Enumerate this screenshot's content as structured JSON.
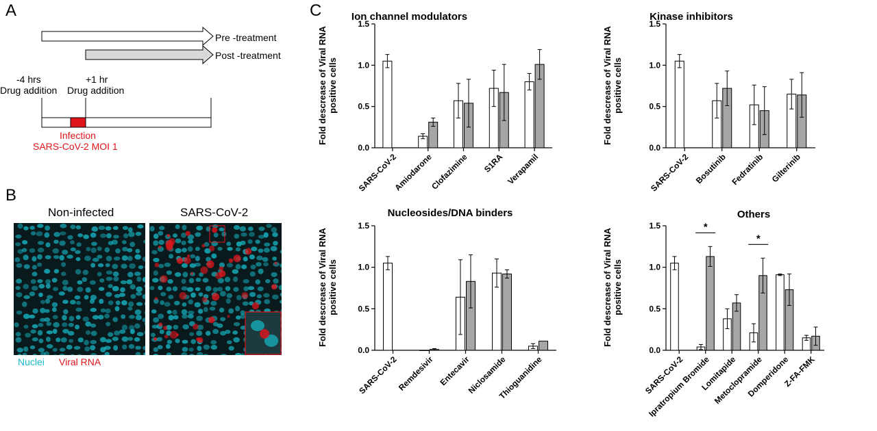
{
  "panels": {
    "a": "A",
    "b": "B",
    "c": "C"
  },
  "timeline": {
    "pretreat_label": "Pre -treatment",
    "posttreat_label": "Post -treatment",
    "minus4_line1": "-4 hrs",
    "minus4_line2": "Drug addition",
    "plus1_line1": "+1 hr",
    "plus1_line2": "Drug addition",
    "infection_line1": "Infection",
    "infection_line2": "SARS-CoV-2 MOI 1",
    "colors": {
      "infection": "#e0141b",
      "post_arrow": "#d9d9d9"
    }
  },
  "micrographs": {
    "left_title": "Non-infected",
    "right_title": "SARS-CoV-2",
    "legend_nuclei": "Nuclei",
    "legend_viral": "Viral RNA",
    "colors": {
      "nuclei": "#17b8c8",
      "viral": "#e0141b"
    }
  },
  "bar_colors": {
    "pre": "#ffffff",
    "post": "#a6a6a6"
  },
  "chart_data": [
    {
      "type": "bar",
      "title": "Ion channel modulators",
      "ylabel": "Fold descrease of Viral RNA positive cells",
      "ylim": [
        0,
        1.5
      ],
      "yticks": [
        "0.0",
        "0.5",
        "1.0",
        "1.5"
      ],
      "categories": [
        "SARS-CoV-2",
        "Amiodarone",
        "Clofazimine",
        "S1RA",
        "Verapamil"
      ],
      "series": [
        {
          "values": [
            1.05,
            0.14,
            0.57,
            0.72,
            0.8
          ],
          "errors": [
            0.08,
            0.03,
            0.21,
            0.22,
            0.1
          ]
        },
        {
          "values": [
            null,
            0.31,
            0.54,
            0.67,
            1.01
          ],
          "errors": [
            null,
            0.05,
            0.29,
            0.34,
            0.18
          ]
        }
      ]
    },
    {
      "type": "bar",
      "title": "Kinase inhibitors",
      "ylabel": "Fold descrease of Viral RNA positive cells",
      "ylim": [
        0,
        1.5
      ],
      "yticks": [
        "0.0",
        "0.5",
        "1.0",
        "1.5"
      ],
      "categories": [
        "SARS-CoV-2",
        "Bosutinib",
        "Fedratinib",
        "Gilterinib"
      ],
      "series": [
        {
          "values": [
            1.05,
            0.57,
            0.52,
            0.65
          ],
          "errors": [
            0.08,
            0.21,
            0.24,
            0.18
          ]
        },
        {
          "values": [
            null,
            0.72,
            0.45,
            0.64
          ],
          "errors": [
            null,
            0.21,
            0.29,
            0.27
          ]
        }
      ]
    },
    {
      "type": "bar",
      "title": "Nucleosides/DNA binders",
      "ylabel": "Fold descrease of Viral RNA positive cells",
      "ylim": [
        0,
        1.5
      ],
      "yticks": [
        "0.0",
        "0.5",
        "1.0",
        "1.5"
      ],
      "categories": [
        "SARS-CoV-2",
        "Remdesivir",
        "Entecavir",
        "Niclosamide",
        "Thioguanidine"
      ],
      "series": [
        {
          "values": [
            1.05,
            0.0,
            0.64,
            0.93,
            0.05
          ],
          "errors": [
            0.08,
            0.0,
            0.45,
            0.17,
            0.03
          ]
        },
        {
          "values": [
            null,
            0.01,
            0.83,
            0.92,
            0.11
          ],
          "errors": [
            null,
            0.01,
            0.32,
            0.05,
            0.0
          ]
        }
      ]
    },
    {
      "type": "bar",
      "title": "Others",
      "ylabel": "Fold descrease of Viral RNA positive cells",
      "ylim": [
        0,
        1.5
      ],
      "yticks": [
        "0.0",
        "0.5",
        "1.0",
        "1.5"
      ],
      "categories": [
        "SARS-CoV-2",
        "Ipratropium Bromide",
        "Lomitapide",
        "Metoclopramide",
        "Domperidone",
        "Z-FA-FMK"
      ],
      "series": [
        {
          "values": [
            1.05,
            0.04,
            0.38,
            0.21,
            0.91,
            0.15
          ],
          "errors": [
            0.08,
            0.03,
            0.12,
            0.11,
            0.01,
            0.03
          ]
        },
        {
          "values": [
            null,
            1.13,
            0.57,
            0.9,
            0.73,
            0.17
          ],
          "errors": [
            null,
            0.12,
            0.1,
            0.21,
            0.19,
            0.11
          ]
        }
      ],
      "significance": [
        {
          "category": "Ipratropium Bromide",
          "label": "*"
        },
        {
          "category": "Metoclopramide",
          "label": "*"
        }
      ]
    }
  ]
}
